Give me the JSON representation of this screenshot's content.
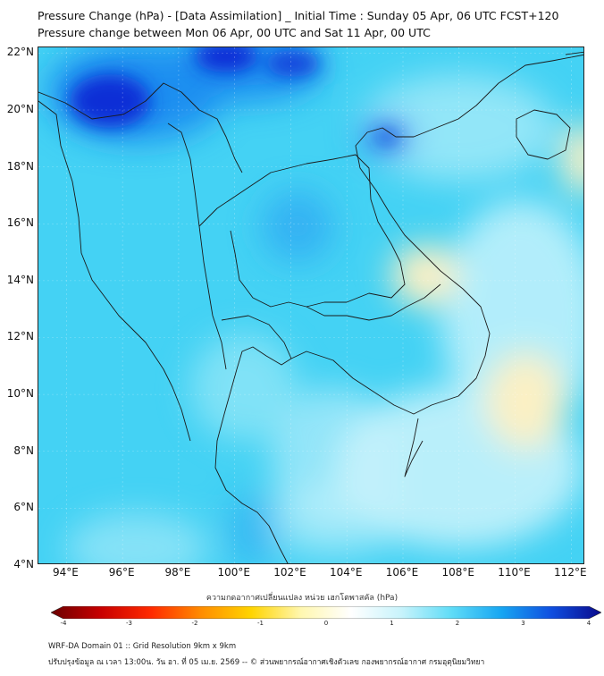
{
  "title": "Pressure Change (hPa) - [Data Assimilation] _ Initial Time : Sunday 05 Apr, 06 UTC FCST+120",
  "subtitle": "Pressure change between Mon 06 Apr, 00 UTC and Sat 11 Apr, 00 UTC",
  "map": {
    "lon_range": [
      93,
      112.5
    ],
    "lat_range": [
      4,
      22.2
    ],
    "lat_ticks": [
      {
        "value": 22,
        "label": "22°N"
      },
      {
        "value": 20,
        "label": "20°N"
      },
      {
        "value": 18,
        "label": "18°N"
      },
      {
        "value": 16,
        "label": "16°N"
      },
      {
        "value": 14,
        "label": "14°N"
      },
      {
        "value": 12,
        "label": "12°N"
      },
      {
        "value": 10,
        "label": "10°N"
      },
      {
        "value": 8,
        "label": "8°N"
      },
      {
        "value": 6,
        "label": "6°N"
      },
      {
        "value": 4,
        "label": "4°N"
      }
    ],
    "lon_ticks": [
      {
        "value": 94,
        "label": "94°E"
      },
      {
        "value": 96,
        "label": "96°E"
      },
      {
        "value": 98,
        "label": "98°E"
      },
      {
        "value": 100,
        "label": "100°E"
      },
      {
        "value": 102,
        "label": "102°E"
      },
      {
        "value": 104,
        "label": "104°E"
      },
      {
        "value": 106,
        "label": "106°E"
      },
      {
        "value": 108,
        "label": "108°E"
      },
      {
        "value": 110,
        "label": "110°E"
      },
      {
        "value": 112,
        "label": "112°E"
      }
    ],
    "colors": {
      "base": "#44d2f4",
      "strong_rise": "#0a2fd6",
      "rise": "#1f8ef0",
      "weak": "#c6f2fb",
      "fall": "#fbf0c4",
      "coast": "#1a1a1a"
    }
  },
  "colorbar": {
    "title": "ความกดอากาศเปลี่ยนแปลง หน่วย เฮกโตพาสคัล (hPa)",
    "ticks": [
      {
        "value": -4,
        "label": "-4"
      },
      {
        "value": -3,
        "label": "-3"
      },
      {
        "value": -2,
        "label": "-2"
      },
      {
        "value": -1,
        "label": "-1"
      },
      {
        "value": 0,
        "label": "0"
      },
      {
        "value": 1,
        "label": "1"
      },
      {
        "value": 2,
        "label": "2"
      },
      {
        "value": 3,
        "label": "3"
      },
      {
        "value": 4,
        "label": "4"
      }
    ],
    "stops": [
      "#6b0000",
      "#c80000",
      "#ff2a00",
      "#ff8c00",
      "#ffd400",
      "#fff7b0",
      "#ffffff",
      "#c8f3fb",
      "#5fdcf7",
      "#17a6f2",
      "#0f4fe0",
      "#0a0a8c"
    ]
  },
  "footer": {
    "line1": "WRF-DA Domain 01 :: Grid Resolution 9km x 9km",
    "line2": "ปรับปรุงข้อมูล ณ เวลา 13:00น. วัน อา. ที่ 05 เม.ย. 2569 -- © ส่วนพยากรณ์อากาศเชิงตัวเลข กองพยากรณ์อากาศ กรมอุตุนิยมวิทยา"
  }
}
